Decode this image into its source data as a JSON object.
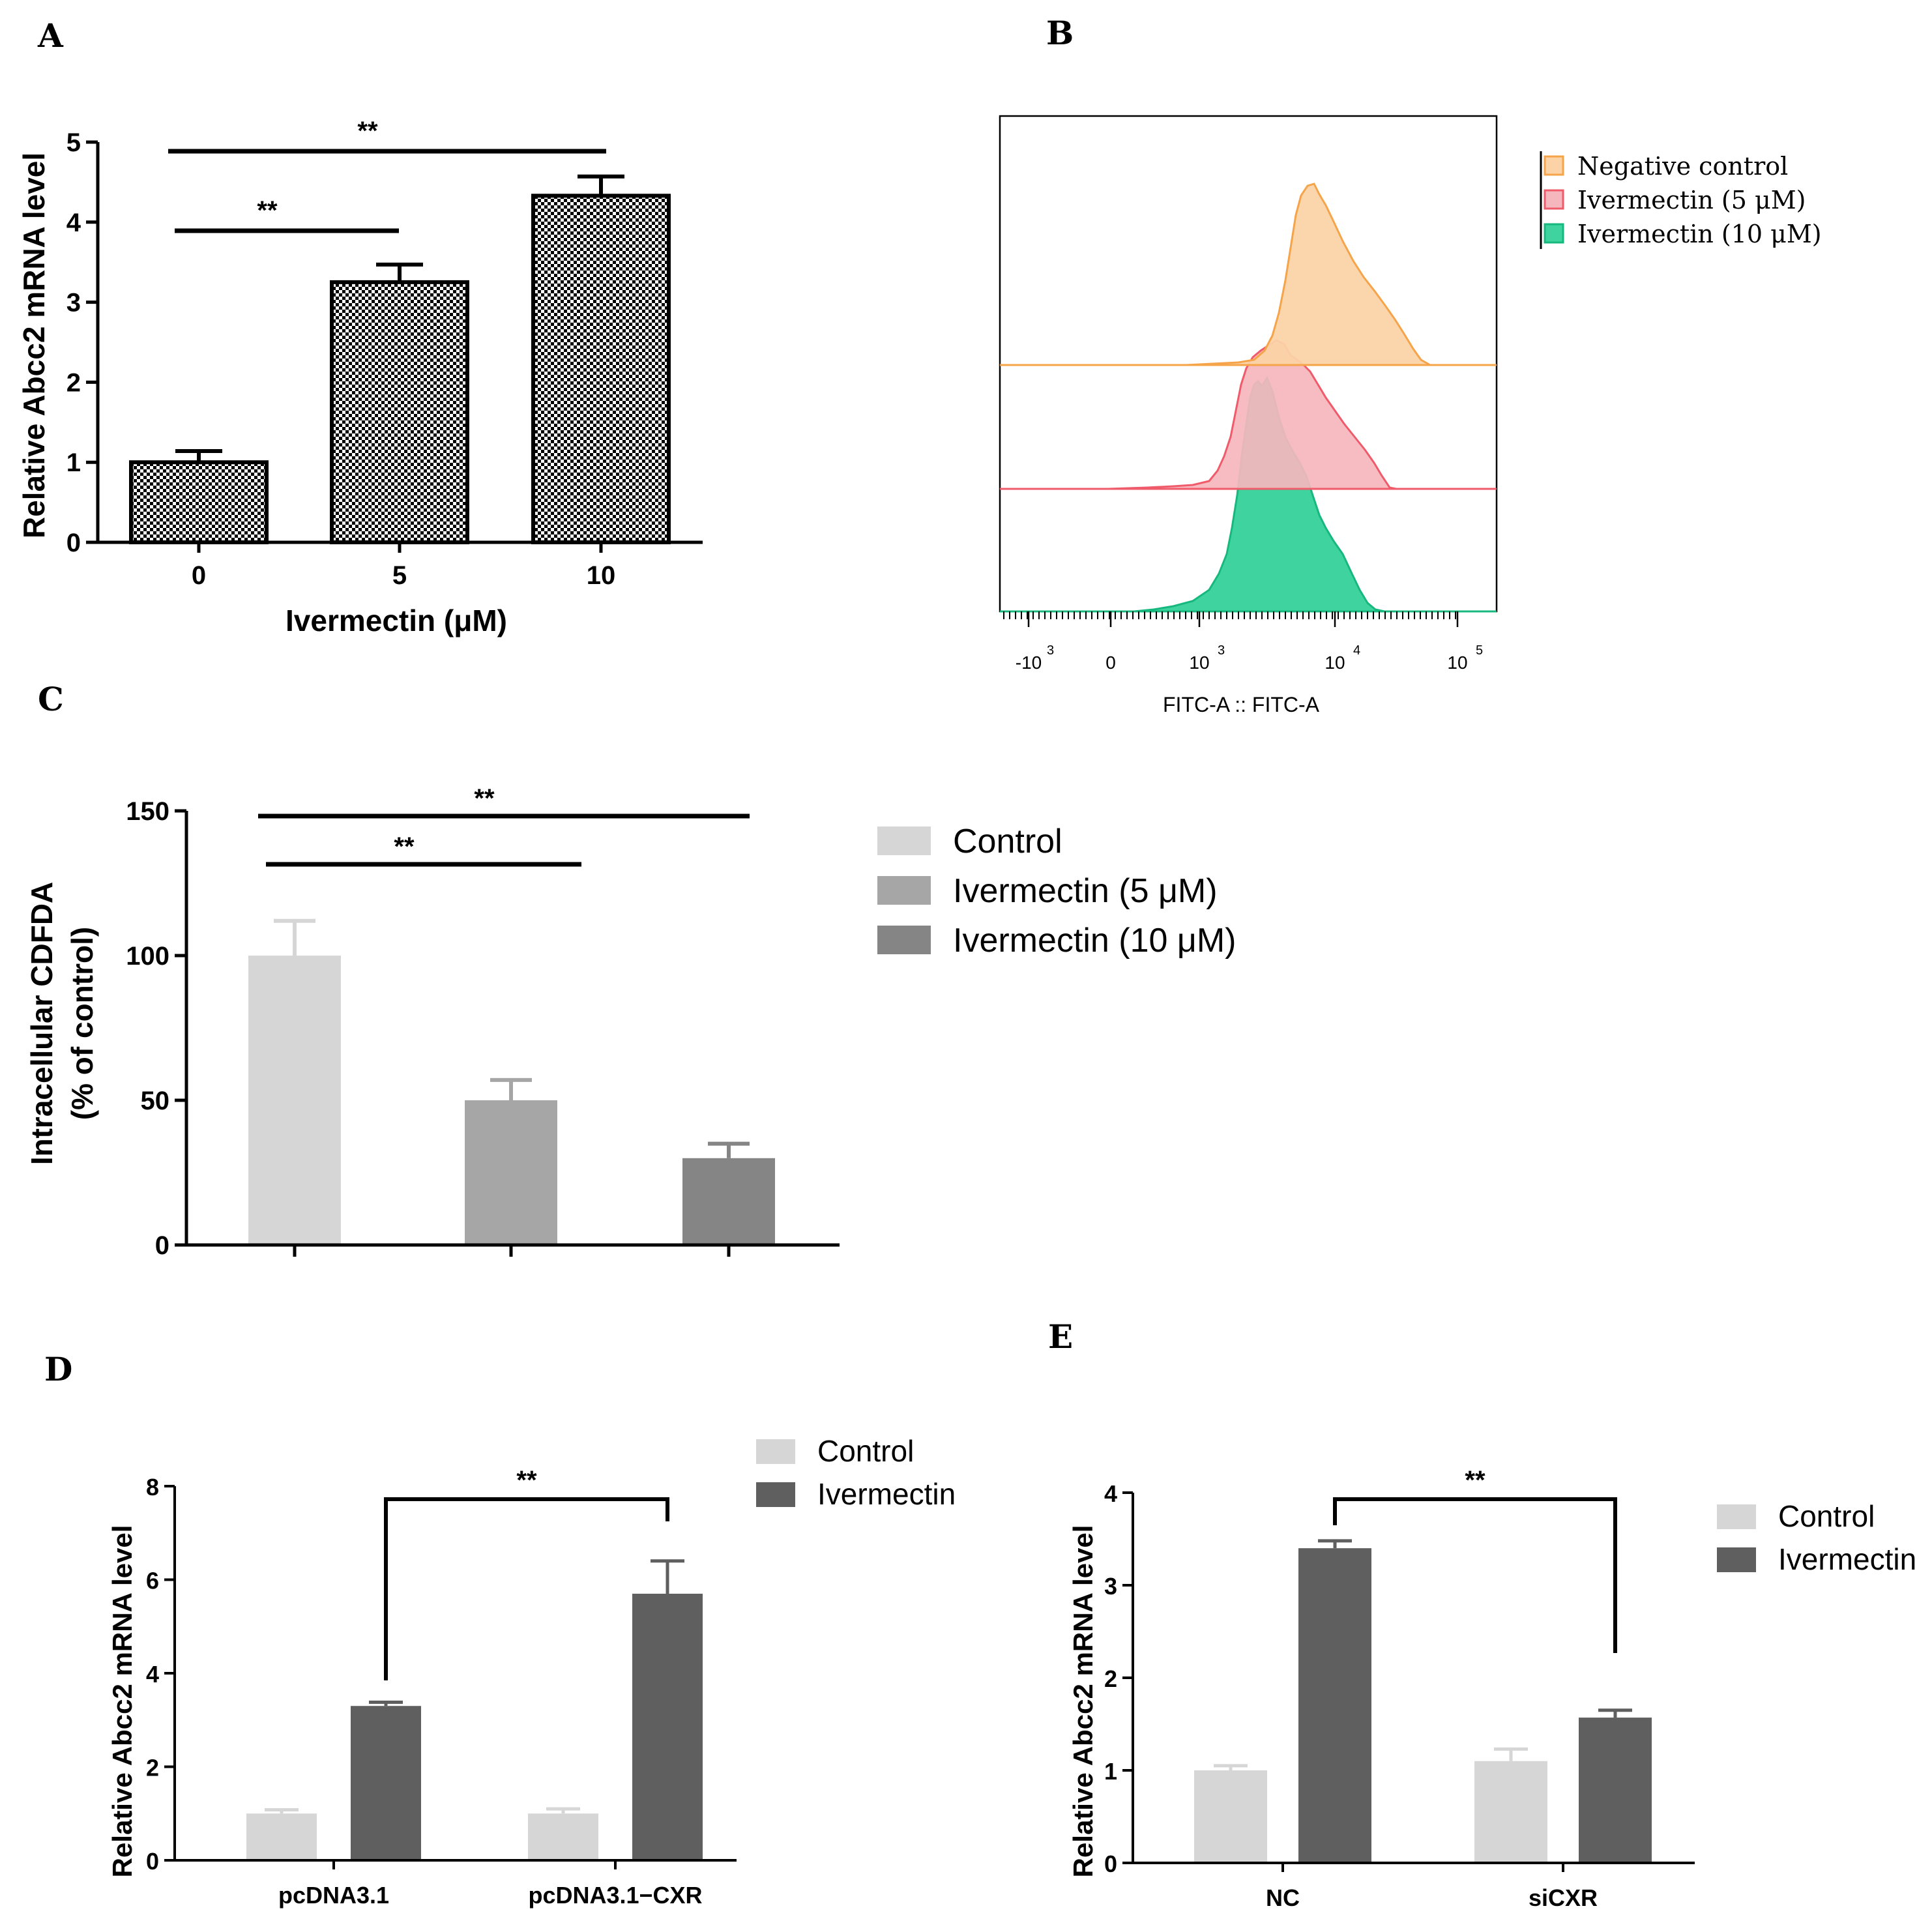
{
  "panels": {
    "A": "A",
    "B": "B",
    "C": "C",
    "D": "D",
    "E": "E"
  },
  "colors": {
    "control_gray": "#d6d6d6",
    "mid_gray": "#a6a6a6",
    "dark_gray": "#5f5f5f",
    "c_ivm10": "#858585",
    "flow_orange": "#f5a44a",
    "flow_orange_fill": "#fbd3a6",
    "flow_red": "#ef5b6a",
    "flow_red_fill": "#f6b6bd",
    "flow_green": "#16b87e",
    "flow_green_fill": "#3fd3a0"
  },
  "chart_data": [
    {
      "id": "A",
      "type": "bar",
      "title": "",
      "xlabel": "Ivermectin (μM)",
      "ylabel": "Relative Abcc2 mRNA level",
      "categories": [
        "0",
        "5",
        "10"
      ],
      "values": [
        1.0,
        3.25,
        4.33
      ],
      "errors": [
        0.14,
        0.22,
        0.24
      ],
      "ylim": [
        0,
        5
      ],
      "yticks": [
        "0",
        "1",
        "2",
        "3",
        "4",
        "5"
      ],
      "fill": "checkered",
      "significance": [
        {
          "from": "0",
          "to": "5",
          "label": "**"
        },
        {
          "from": "0",
          "to": "10",
          "label": "**"
        }
      ]
    },
    {
      "id": "B",
      "type": "area",
      "xlabel": "FITC-A :: FITC-A",
      "xticks": [
        {
          "base": "-10",
          "exp": "3"
        },
        {
          "base": "0",
          "exp": ""
        },
        {
          "base": "10",
          "exp": "3"
        },
        {
          "base": "10",
          "exp": "4"
        },
        {
          "base": "10",
          "exp": "5"
        }
      ],
      "legend": [
        "Negative control",
        "Ivermectin (5 μM)",
        "Ivermectin (10 μM)"
      ],
      "series": [
        {
          "name": "Negative control",
          "peak_log10": 3.85,
          "color": "orange"
        },
        {
          "name": "Ivermectin (5 μM)",
          "peak_log10": 3.55,
          "color": "red"
        },
        {
          "name": "Ivermectin (10 μM)",
          "peak_log10": 3.5,
          "color": "green"
        }
      ]
    },
    {
      "id": "C",
      "type": "bar",
      "ylabel_line1": "Intracellular CDFDA",
      "ylabel_line2": "(% of control)",
      "categories": [
        "Control",
        "Ivermectin (5 μM)",
        "Ivermectin (10 μM)"
      ],
      "values": [
        100,
        50,
        30
      ],
      "errors": [
        12,
        7,
        5
      ],
      "ylim": [
        0,
        150
      ],
      "yticks": [
        "0",
        "50",
        "100",
        "150"
      ],
      "legend": [
        "Control",
        "Ivermectin (5 μM)",
        "Ivermectin (10 μM)"
      ],
      "significance": [
        {
          "from": "Control",
          "to": "Ivermectin (5 μM)",
          "label": "**"
        },
        {
          "from": "Control",
          "to": "Ivermectin (10 μM)",
          "label": "**"
        }
      ]
    },
    {
      "id": "D",
      "type": "bar",
      "ylabel": "Relative Abcc2 mRNA level",
      "categories": [
        "pcDNA3.1",
        "pcDNA3.1−CXR"
      ],
      "series": [
        {
          "name": "Control",
          "values": [
            1.0,
            1.0
          ],
          "errors": [
            0.08,
            0.1
          ]
        },
        {
          "name": "Ivermectin",
          "values": [
            3.3,
            5.7
          ],
          "errors": [
            0.08,
            0.7
          ]
        }
      ],
      "ylim": [
        0,
        8
      ],
      "yticks": [
        "0",
        "2",
        "4",
        "6",
        "8"
      ],
      "legend": [
        "Control",
        "Ivermectin"
      ],
      "significance": [
        {
          "from": "pcDNA3.1",
          "to": "pcDNA3.1−CXR",
          "label": "**"
        }
      ]
    },
    {
      "id": "E",
      "type": "bar",
      "ylabel": "Relative Abcc2 mRNA level",
      "categories": [
        "NC",
        "siCXR"
      ],
      "series": [
        {
          "name": "Control",
          "values": [
            1.0,
            1.1
          ],
          "errors": [
            0.05,
            0.13
          ]
        },
        {
          "name": "Ivermectin",
          "values": [
            3.4,
            1.57
          ],
          "errors": [
            0.08,
            0.08
          ]
        }
      ],
      "ylim": [
        0,
        4
      ],
      "yticks": [
        "0",
        "1",
        "2",
        "3",
        "4"
      ],
      "legend": [
        "Control",
        "Ivermectin"
      ],
      "significance": [
        {
          "from": "NC",
          "to": "siCXR",
          "label": "**"
        }
      ]
    }
  ]
}
